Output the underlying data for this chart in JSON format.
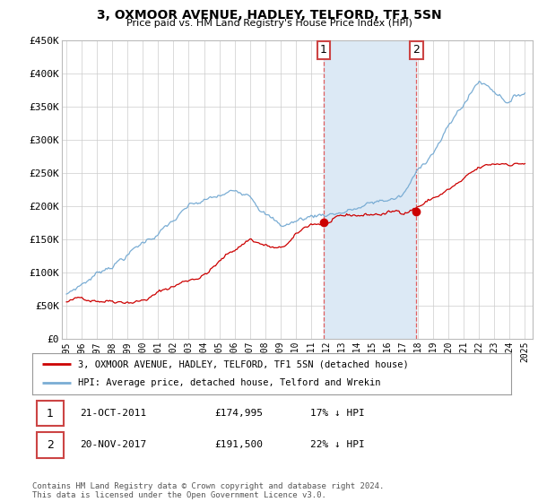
{
  "title": "3, OXMOOR AVENUE, HADLEY, TELFORD, TF1 5SN",
  "subtitle": "Price paid vs. HM Land Registry's House Price Index (HPI)",
  "ylim": [
    0,
    450000
  ],
  "yticks": [
    0,
    50000,
    100000,
    150000,
    200000,
    250000,
    300000,
    350000,
    400000,
    450000
  ],
  "ytick_labels": [
    "£0",
    "£50K",
    "£100K",
    "£150K",
    "£200K",
    "£250K",
    "£300K",
    "£350K",
    "£400K",
    "£450K"
  ],
  "x_start_year": 1995,
  "x_end_year": 2025,
  "hpi_color": "#7aadd4",
  "price_color": "#cc0000",
  "shade_color": "#dce9f5",
  "transaction1_year": 2011.83,
  "transaction1_price": 174995,
  "transaction2_year": 2017.9,
  "transaction2_price": 191500,
  "legend_line1": "3, OXMOOR AVENUE, HADLEY, TELFORD, TF1 5SN (detached house)",
  "legend_line2": "HPI: Average price, detached house, Telford and Wrekin",
  "table_row1": [
    "1",
    "21-OCT-2011",
    "£174,995",
    "17% ↓ HPI"
  ],
  "table_row2": [
    "2",
    "20-NOV-2017",
    "£191,500",
    "22% ↓ HPI"
  ],
  "footnote": "Contains HM Land Registry data © Crown copyright and database right 2024.\nThis data is licensed under the Open Government Licence v3.0.",
  "background_color": "#ffffff",
  "grid_color": "#cccccc",
  "title_fontsize": 10,
  "subtitle_fontsize": 8
}
